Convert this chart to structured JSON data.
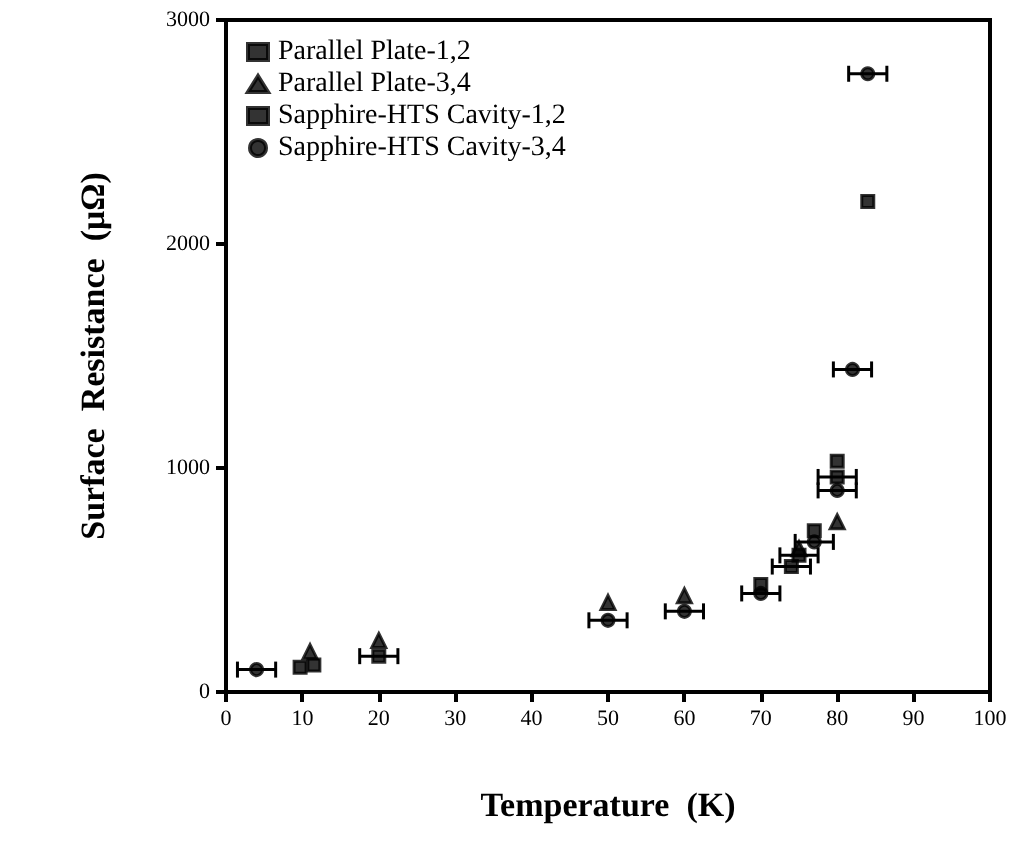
{
  "chart_data": {
    "type": "scatter",
    "xlabel": "Temperature  (K)",
    "ylabel": "Surface  Resistance  (μΩ)",
    "xlim": [
      0,
      100
    ],
    "xticks": [
      0,
      10,
      20,
      30,
      40,
      50,
      60,
      70,
      80,
      90,
      100
    ],
    "ylim": [
      0,
      3000
    ],
    "yticks": [
      0,
      1000,
      2000,
      3000
    ],
    "legend": "top left",
    "grid": false,
    "series": [
      {
        "name": "Parallel Plate-1,2",
        "color": "#000000",
        "marker": "square",
        "x": [
          9.7,
          11.5,
          70,
          77,
          80,
          84
        ],
        "values": [
          110,
          120,
          480,
          720,
          1030,
          2190
        ]
      },
      {
        "name": "Parallel Plate-3,4",
        "color": "#000000",
        "marker": "triangle",
        "x": [
          11,
          20,
          50,
          60,
          75,
          80
        ],
        "values": [
          180,
          230,
          400,
          430,
          640,
          760
        ]
      },
      {
        "name": "Sapphire-HTS Cavity-1,2",
        "color": "#000000",
        "marker": "square",
        "x": [
          20,
          74,
          75,
          80
        ],
        "values": [
          160,
          560,
          610,
          960
        ],
        "xerrors": [
          2.5,
          2.5,
          2.5,
          2.5
        ]
      },
      {
        "name": "Sapphire-HTS Cavity-3,4",
        "color": "#000000",
        "marker": "circle",
        "x": [
          4,
          50,
          60,
          70,
          77,
          80,
          82,
          84
        ],
        "values": [
          100,
          320,
          360,
          440,
          670,
          900,
          1440,
          2760
        ],
        "xerrors": [
          2.5,
          2.5,
          2.5,
          2.5,
          2.5,
          2.5,
          2.5,
          2.5
        ]
      }
    ]
  }
}
